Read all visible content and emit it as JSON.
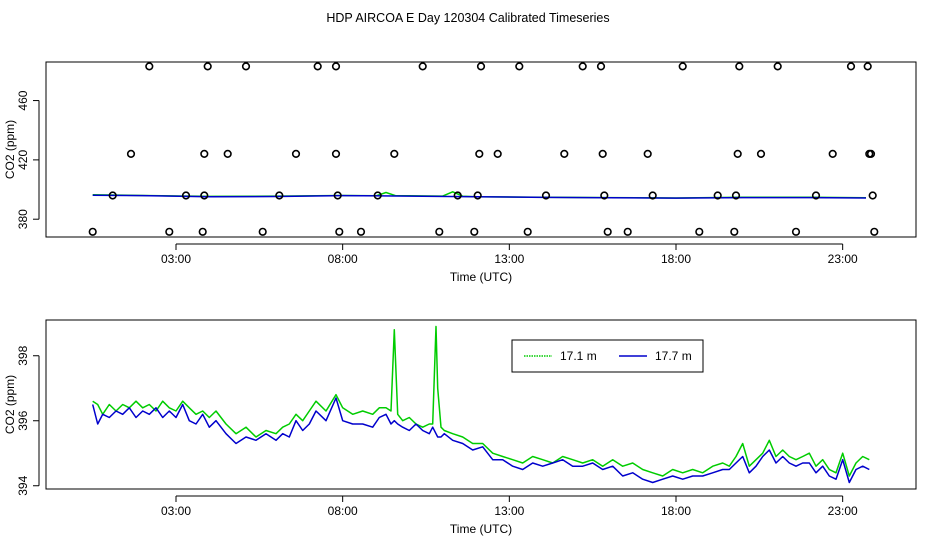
{
  "title": "HDP AIRCOA E  Day 120304  Calibrated Timeseries",
  "colors": {
    "series_171": "#00cc00",
    "series_177": "#0000cc",
    "axis": "#000000"
  },
  "chart_data": [
    {
      "type": "scatter",
      "name": "top-panel",
      "xlabel": "Time (UTC)",
      "ylabel": "CO2 (ppm)",
      "xlim": [
        -0.9,
        25.2
      ],
      "ylim": [
        368,
        486
      ],
      "xticks": [
        3,
        8,
        13,
        18,
        23
      ],
      "xtick_labels": [
        "03:00",
        "08:00",
        "13:00",
        "18:00",
        "23:00"
      ],
      "yticks": [
        380,
        420,
        460
      ],
      "ytick_labels": [
        "380",
        "420",
        "460"
      ],
      "points": [
        [
          0.5,
          371.5
        ],
        [
          1.1,
          396
        ],
        [
          1.65,
          424
        ],
        [
          2.2,
          483
        ],
        [
          2.8,
          371.5
        ],
        [
          3.3,
          396
        ],
        [
          3.85,
          396
        ],
        [
          3.85,
          424
        ],
        [
          3.8,
          371.5
        ],
        [
          3.95,
          483
        ],
        [
          5.1,
          483
        ],
        [
          4.55,
          424
        ],
        [
          5.6,
          371.5
        ],
        [
          6.1,
          396
        ],
        [
          6.6,
          424
        ],
        [
          7.25,
          483
        ],
        [
          7.8,
          483
        ],
        [
          7.8,
          424
        ],
        [
          7.85,
          396
        ],
        [
          7.9,
          371.5
        ],
        [
          8.55,
          371.5
        ],
        [
          9.05,
          396
        ],
        [
          9.55,
          424
        ],
        [
          10.4,
          483
        ],
        [
          10.9,
          371.5
        ],
        [
          11.45,
          396
        ],
        [
          11.95,
          371.5
        ],
        [
          12.05,
          396
        ],
        [
          12.1,
          424
        ],
        [
          12.15,
          483
        ],
        [
          12.65,
          424
        ],
        [
          13.3,
          483
        ],
        [
          13.55,
          371.5
        ],
        [
          14.1,
          396
        ],
        [
          14.65,
          424
        ],
        [
          15.2,
          483
        ],
        [
          15.75,
          483
        ],
        [
          15.8,
          424
        ],
        [
          15.85,
          396
        ],
        [
          15.95,
          371.5
        ],
        [
          16.55,
          371.5
        ],
        [
          17.15,
          424
        ],
        [
          17.3,
          396
        ],
        [
          18.2,
          483
        ],
        [
          18.7,
          371.5
        ],
        [
          19.25,
          396
        ],
        [
          19.75,
          371.5
        ],
        [
          19.8,
          396
        ],
        [
          19.85,
          424
        ],
        [
          19.9,
          483
        ],
        [
          20.55,
          424
        ],
        [
          21.05,
          483
        ],
        [
          21.6,
          371.5
        ],
        [
          22.2,
          396
        ],
        [
          22.7,
          424
        ],
        [
          23.25,
          483
        ],
        [
          23.75,
          483
        ],
        [
          23.8,
          424
        ],
        [
          23.85,
          424
        ],
        [
          23.9,
          396
        ],
        [
          23.95,
          371.5
        ]
      ],
      "series": [
        {
          "name": "17.1 m",
          "x": [
            0.5,
            2,
            4,
            6,
            8,
            9,
            9.3,
            9.6,
            10,
            11,
            11.3,
            11.6,
            12,
            14,
            16,
            18,
            20,
            22,
            23.7
          ],
          "values": [
            396.5,
            396,
            395.4,
            395.6,
            396,
            395.8,
            398,
            395.8,
            395.8,
            395.6,
            398.5,
            395.5,
            395.2,
            394.8,
            394.6,
            394.3,
            394.8,
            394.8,
            394.5
          ]
        },
        {
          "name": "17.7 m",
          "x": [
            0.5,
            2,
            4,
            6,
            8,
            10,
            12,
            14,
            16,
            18,
            20,
            22,
            23.7
          ],
          "values": [
            396.2,
            395.9,
            395.2,
            395.3,
            395.9,
            395.6,
            395.2,
            394.7,
            394.5,
            394.2,
            394.6,
            394.6,
            394.3
          ]
        }
      ]
    },
    {
      "type": "line",
      "name": "bottom-panel",
      "xlabel": "Time (UTC)",
      "ylabel": "CO2 (ppm)",
      "xlim": [
        -0.9,
        25.2
      ],
      "ylim": [
        393.9,
        399.1
      ],
      "xticks": [
        3,
        8,
        13,
        18,
        23
      ],
      "xtick_labels": [
        "03:00",
        "08:00",
        "13:00",
        "18:00",
        "23:00"
      ],
      "yticks": [
        394,
        396,
        398
      ],
      "ytick_labels": [
        "394",
        "396",
        "398"
      ],
      "legend": {
        "position": "top-right",
        "entries": [
          "17.1 m",
          "17.7 m"
        ]
      },
      "series": [
        {
          "name": "17.1 m",
          "x": [
            0.5,
            0.65,
            0.8,
            1.0,
            1.2,
            1.4,
            1.6,
            1.8,
            2.0,
            2.2,
            2.4,
            2.6,
            2.8,
            3.0,
            3.2,
            3.4,
            3.6,
            3.8,
            4.0,
            4.2,
            4.5,
            4.8,
            5.1,
            5.4,
            5.7,
            6.0,
            6.2,
            6.4,
            6.6,
            6.8,
            7.0,
            7.2,
            7.5,
            7.8,
            8.0,
            8.3,
            8.6,
            8.9,
            9.1,
            9.3,
            9.45,
            9.55,
            9.65,
            9.8,
            10.0,
            10.2,
            10.4,
            10.6,
            10.7,
            10.8,
            10.85,
            10.95,
            11.05,
            11.3,
            11.6,
            11.9,
            12.2,
            12.5,
            12.8,
            13.1,
            13.4,
            13.7,
            14.0,
            14.3,
            14.6,
            14.9,
            15.2,
            15.5,
            15.8,
            16.1,
            16.4,
            16.7,
            17.0,
            17.3,
            17.6,
            17.9,
            18.2,
            18.5,
            18.8,
            19.1,
            19.4,
            19.6,
            19.8,
            20.0,
            20.2,
            20.4,
            20.6,
            20.8,
            21.0,
            21.2,
            21.4,
            21.6,
            21.8,
            22.0,
            22.2,
            22.4,
            22.6,
            22.8,
            23.0,
            23.2,
            23.4,
            23.6,
            23.8
          ],
          "values": [
            396.6,
            396.5,
            396.2,
            396.5,
            396.3,
            396.5,
            396.4,
            396.6,
            396.4,
            396.5,
            396.3,
            396.6,
            396.4,
            396.3,
            396.6,
            396.4,
            396.2,
            396.3,
            396.1,
            396.3,
            395.9,
            395.6,
            395.8,
            395.5,
            395.7,
            395.6,
            395.8,
            395.9,
            396.2,
            396.0,
            396.3,
            396.6,
            396.3,
            396.8,
            396.4,
            396.2,
            396.3,
            396.2,
            396.4,
            396.4,
            396.3,
            398.8,
            396.2,
            396.0,
            396.1,
            395.9,
            395.8,
            395.9,
            395.9,
            398.9,
            397.0,
            395.8,
            395.7,
            395.6,
            395.5,
            395.3,
            395.3,
            395.0,
            394.9,
            394.8,
            394.7,
            394.9,
            394.8,
            394.7,
            394.9,
            394.8,
            394.7,
            394.8,
            394.6,
            394.8,
            394.6,
            394.7,
            394.5,
            394.4,
            394.3,
            394.5,
            394.4,
            394.5,
            394.4,
            394.6,
            394.7,
            394.6,
            394.9,
            395.3,
            394.6,
            394.8,
            395.0,
            395.4,
            394.9,
            395.1,
            394.9,
            394.8,
            394.9,
            395.0,
            394.6,
            394.8,
            394.5,
            394.4,
            395.0,
            394.3,
            394.7,
            394.9,
            394.8
          ]
        },
        {
          "name": "17.7 m",
          "x": [
            0.5,
            0.65,
            0.8,
            1.0,
            1.2,
            1.4,
            1.6,
            1.8,
            2.0,
            2.2,
            2.4,
            2.6,
            2.8,
            3.0,
            3.2,
            3.4,
            3.6,
            3.8,
            4.0,
            4.2,
            4.5,
            4.8,
            5.1,
            5.4,
            5.7,
            6.0,
            6.2,
            6.4,
            6.6,
            6.8,
            7.0,
            7.2,
            7.5,
            7.8,
            8.0,
            8.3,
            8.6,
            8.9,
            9.1,
            9.3,
            9.45,
            9.55,
            9.65,
            9.8,
            10.0,
            10.2,
            10.4,
            10.6,
            10.7,
            10.8,
            10.85,
            10.95,
            11.05,
            11.3,
            11.6,
            11.9,
            12.2,
            12.5,
            12.8,
            13.1,
            13.4,
            13.7,
            14.0,
            14.3,
            14.6,
            14.9,
            15.2,
            15.5,
            15.8,
            16.1,
            16.4,
            16.7,
            17.0,
            17.3,
            17.6,
            17.9,
            18.2,
            18.5,
            18.8,
            19.1,
            19.4,
            19.6,
            19.8,
            20.0,
            20.2,
            20.4,
            20.6,
            20.8,
            21.0,
            21.2,
            21.4,
            21.6,
            21.8,
            22.0,
            22.2,
            22.4,
            22.6,
            22.8,
            23.0,
            23.2,
            23.4,
            23.6,
            23.8
          ],
          "values": [
            396.5,
            395.9,
            396.2,
            396.1,
            396.3,
            396.2,
            396.4,
            396.1,
            396.3,
            396.2,
            396.4,
            396.1,
            396.3,
            396.1,
            396.5,
            396.0,
            395.9,
            396.2,
            395.8,
            396.0,
            395.6,
            395.3,
            395.5,
            395.4,
            395.6,
            395.4,
            395.6,
            395.5,
            396.0,
            395.7,
            395.9,
            396.3,
            396.0,
            396.7,
            396.0,
            395.9,
            395.9,
            395.8,
            396.1,
            396.2,
            395.9,
            396.0,
            395.9,
            395.8,
            395.7,
            395.9,
            395.7,
            395.6,
            395.8,
            395.6,
            395.5,
            395.5,
            395.6,
            395.4,
            395.3,
            395.1,
            395.2,
            394.8,
            394.8,
            394.6,
            394.5,
            394.7,
            394.6,
            394.7,
            394.8,
            394.6,
            394.6,
            394.7,
            394.5,
            394.6,
            394.3,
            394.4,
            394.2,
            394.1,
            394.2,
            394.3,
            394.2,
            394.3,
            394.3,
            394.4,
            394.5,
            394.5,
            394.7,
            394.9,
            394.4,
            394.6,
            394.9,
            395.1,
            394.7,
            394.9,
            394.7,
            394.6,
            394.7,
            394.7,
            394.4,
            394.6,
            394.3,
            394.2,
            394.8,
            394.1,
            394.5,
            394.6,
            394.5
          ]
        }
      ]
    }
  ]
}
